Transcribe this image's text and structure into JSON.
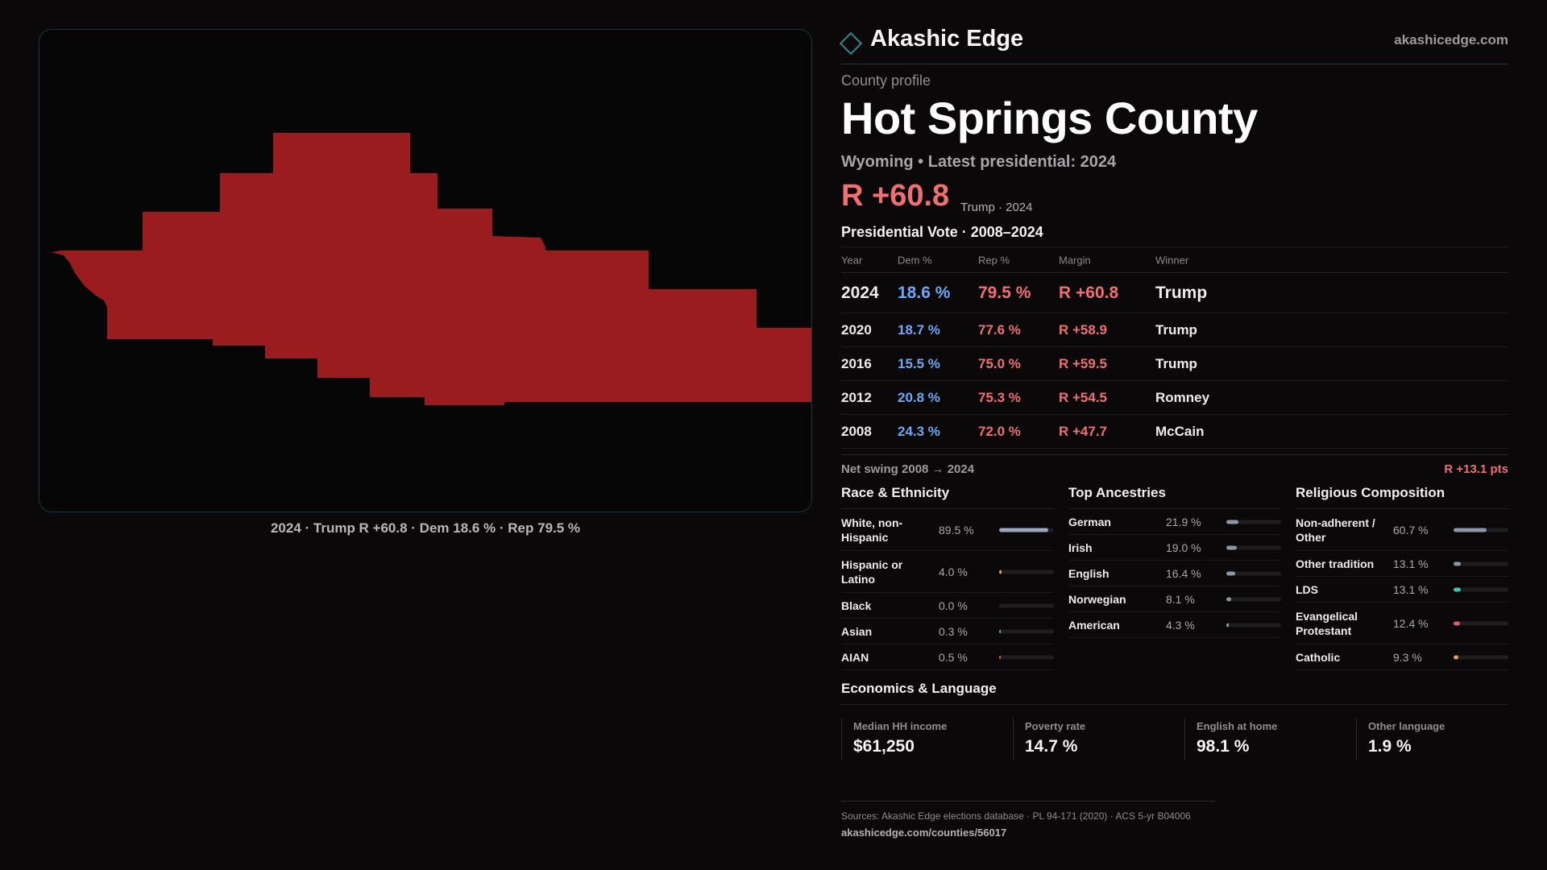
{
  "map": {
    "caption": "2024 · Trump R +60.8 · Dem 18.6 % · Rep 79.5 %",
    "fill_color": "#9b1c1f"
  },
  "brand": {
    "name": "Akashic Edge",
    "url": "akashicedge.com"
  },
  "profile": {
    "eyebrow": "County profile",
    "title": "Hot Springs County",
    "subline": "Wyoming • Latest presidential: 2024",
    "margin": "R +60.8",
    "margin_note": "Trump · 2024"
  },
  "vote_history": {
    "title": "Presidential Vote · 2008–2024",
    "headers": [
      "Year",
      "Dem %",
      "Rep %",
      "Margin",
      "Winner"
    ],
    "rows": [
      {
        "year": "2024",
        "dem": "18.6 %",
        "rep": "79.5 %",
        "margin": "R +60.8",
        "winner": "Trump"
      },
      {
        "year": "2020",
        "dem": "18.7 %",
        "rep": "77.6 %",
        "margin": "R +58.9",
        "winner": "Trump"
      },
      {
        "year": "2016",
        "dem": "15.5 %",
        "rep": "75.0 %",
        "margin": "R +59.5",
        "winner": "Trump"
      },
      {
        "year": "2012",
        "dem": "20.8 %",
        "rep": "75.3 %",
        "margin": "R +54.5",
        "winner": "Romney"
      },
      {
        "year": "2008",
        "dem": "24.3 %",
        "rep": "72.0 %",
        "margin": "R +47.7",
        "winner": "McCain"
      }
    ],
    "swing_label": "Net swing 2008 → 2024",
    "swing_value": "R +13.1 pts"
  },
  "race": {
    "title": "Race & Ethnicity",
    "items": [
      {
        "label": "White, non-Hispanic",
        "value": "89.5 %",
        "share": 0.895,
        "color": "#9aa7bd"
      },
      {
        "label": "Hispanic or Latino",
        "value": "4.0 %",
        "share": 0.04,
        "color": "#e2a33a"
      },
      {
        "label": "Black",
        "value": "0.0 %",
        "share": 0.0,
        "color": "#9aa7bd"
      },
      {
        "label": "Asian",
        "value": "0.3 %",
        "share": 0.003,
        "color": "#4fb6a6"
      },
      {
        "label": "AIAN",
        "value": "0.5 %",
        "share": 0.005,
        "color": "#d0644f"
      }
    ]
  },
  "ancestry": {
    "title": "Top Ancestries",
    "items": [
      {
        "label": "German",
        "value": "21.9 %",
        "share": 0.219,
        "color": "#8e97a8"
      },
      {
        "label": "Irish",
        "value": "19.0 %",
        "share": 0.19,
        "color": "#8e97a8"
      },
      {
        "label": "English",
        "value": "16.4 %",
        "share": 0.164,
        "color": "#8e97a8"
      },
      {
        "label": "Norwegian",
        "value": "8.1 %",
        "share": 0.081,
        "color": "#8e97a8"
      },
      {
        "label": "American",
        "value": "4.3 %",
        "share": 0.043,
        "color": "#8e97a8"
      }
    ]
  },
  "religion": {
    "title": "Religious Composition",
    "items": [
      {
        "label": "Non-adherent / Other",
        "value": "60.7 %",
        "share": 0.607,
        "color": "#8e97a8"
      },
      {
        "label": "Other tradition",
        "value": "13.1 %",
        "share": 0.131,
        "color": "#8e97a8"
      },
      {
        "label": "LDS",
        "value": "13.1 %",
        "share": 0.131,
        "color": "#3fc1b8"
      },
      {
        "label": "Evangelical Protestant",
        "value": "12.4 %",
        "share": 0.124,
        "color": "#e25b65"
      },
      {
        "label": "Catholic",
        "value": "9.3 %",
        "share": 0.093,
        "color": "#e2a33a"
      }
    ]
  },
  "economics": {
    "title": "Economics & Language",
    "items": [
      {
        "label": "Median HH income",
        "value": "$61,250"
      },
      {
        "label": "Poverty rate",
        "value": "14.7 %"
      },
      {
        "label": "English at home",
        "value": "98.1 %"
      },
      {
        "label": "Other language",
        "value": "1.9 %"
      }
    ]
  },
  "sources": {
    "text": "Sources: Akashic Edge elections database · PL 94-171 (2020) · ACS 5-yr B04006",
    "url": "akashicedge.com/counties/56017"
  }
}
